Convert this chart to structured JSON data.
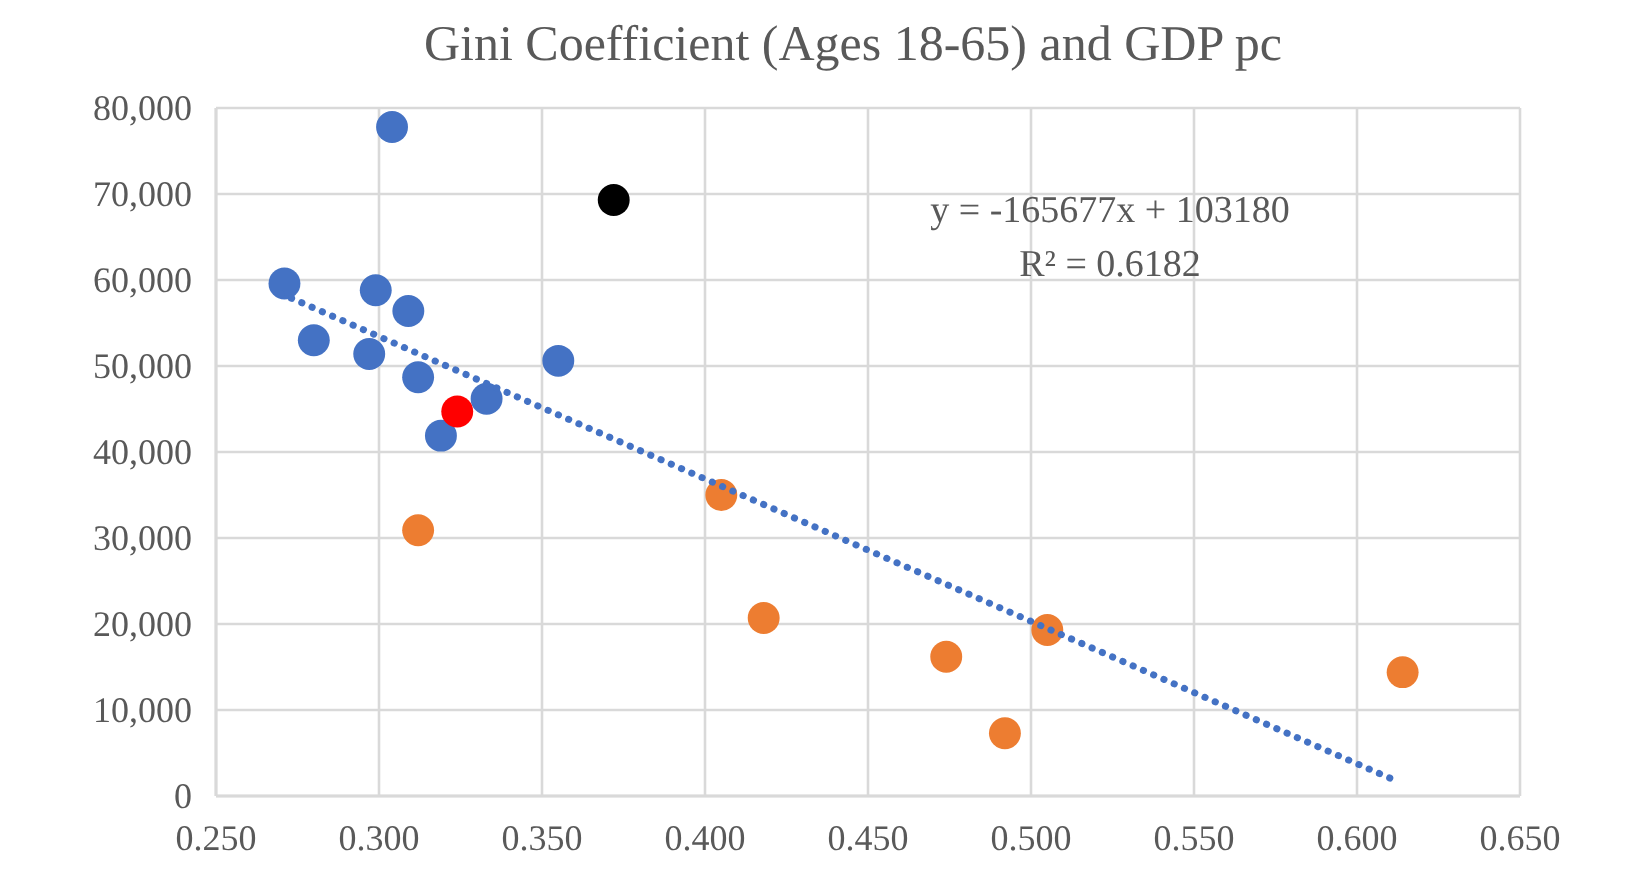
{
  "chart_data": {
    "type": "scatter",
    "title": "Gini Coefficient (Ages 18-65) and GDP pc",
    "series": [
      {
        "color": "#4472c4",
        "x": [
          0.271,
          0.28,
          0.299,
          0.304,
          0.309,
          0.297,
          0.312,
          0.319,
          0.333,
          0.355
        ],
        "values": [
          59600,
          53000,
          58800,
          77800,
          56400,
          51400,
          48700,
          41900,
          46200,
          50600
        ]
      },
      {
        "color": "#ff0000",
        "x": [
          0.324
        ],
        "values": [
          44700
        ]
      },
      {
        "color": "#000000",
        "x": [
          0.372
        ],
        "values": [
          69300
        ]
      },
      {
        "color": "#ed7d31",
        "x": [
          0.312,
          0.405,
          0.418,
          0.474,
          0.492,
          0.505,
          0.614
        ],
        "values": [
          30900,
          35000,
          20700,
          16200,
          7300,
          19300,
          14400
        ]
      },
      {
        "type": "line",
        "color": "#4472c4",
        "line_style": "dotted",
        "marker": "none",
        "x": [
          0.27,
          0.613
        ],
        "values": [
          58400,
          1600
        ]
      }
    ],
    "marker": "circle",
    "grid": true,
    "xlim": [
      0.25,
      0.65
    ],
    "xticks": [
      {
        "value": 0.25,
        "label": "0.250"
      },
      {
        "value": 0.3,
        "label": "0.300"
      },
      {
        "value": 0.35,
        "label": "0.350"
      },
      {
        "value": 0.4,
        "label": "0.400"
      },
      {
        "value": 0.45,
        "label": "0.450"
      },
      {
        "value": 0.5,
        "label": "0.500"
      },
      {
        "value": 0.55,
        "label": "0.550"
      },
      {
        "value": 0.6,
        "label": "0.600"
      },
      {
        "value": 0.65,
        "label": "0.650"
      }
    ],
    "ylim": [
      0,
      80000
    ],
    "yticks": [
      {
        "value": 0,
        "label": "0"
      },
      {
        "value": 10000,
        "label": "10,000"
      },
      {
        "value": 20000,
        "label": "20,000"
      },
      {
        "value": 30000,
        "label": "30,000"
      },
      {
        "value": 40000,
        "label": "40,000"
      },
      {
        "value": 50000,
        "label": "50,000"
      },
      {
        "value": 60000,
        "label": "60,000"
      },
      {
        "value": 70000,
        "label": "70,000"
      },
      {
        "value": 80000,
        "label": "80,000"
      }
    ],
    "annotations": [
      "y = -165677x + 103180",
      "R² = 0.6182"
    ]
  }
}
